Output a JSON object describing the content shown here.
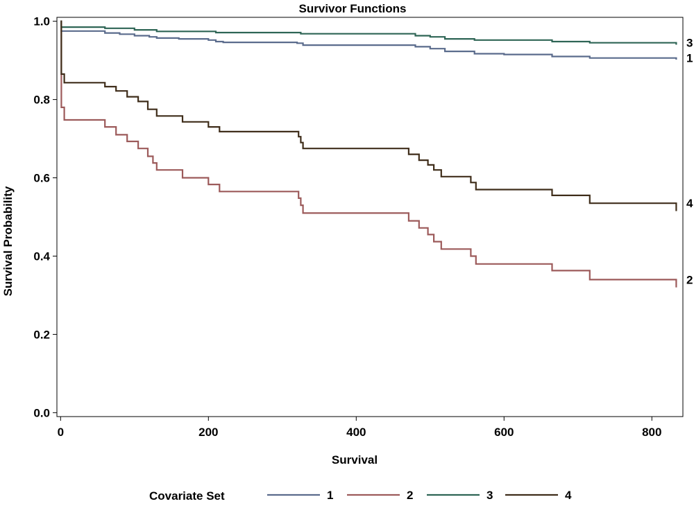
{
  "chart_data": {
    "type": "line",
    "title": "Survivor Functions",
    "xlabel": "Survival",
    "ylabel": "Survival Probability",
    "xlim": [
      -5,
      842
    ],
    "ylim": [
      -0.01,
      1.01
    ],
    "xticks": [
      0,
      200,
      400,
      600,
      800
    ],
    "yticks": [
      0.0,
      0.2,
      0.4,
      0.6,
      0.8,
      1.0
    ],
    "ytick_labels": [
      "0.0",
      "0.2",
      "0.4",
      "0.6",
      "0.8",
      "1.0"
    ],
    "grid": false,
    "legend": {
      "title": "Covariate Set",
      "placement": "bottom"
    },
    "series": [
      {
        "name": "1",
        "end_label": "1",
        "color": "#5a6b8c",
        "points": [
          [
            0,
            1.0
          ],
          [
            1,
            0.975
          ],
          [
            60,
            0.97
          ],
          [
            80,
            0.967
          ],
          [
            100,
            0.963
          ],
          [
            120,
            0.96
          ],
          [
            130,
            0.957
          ],
          [
            160,
            0.955
          ],
          [
            200,
            0.952
          ],
          [
            210,
            0.948
          ],
          [
            220,
            0.946
          ],
          [
            320,
            0.944
          ],
          [
            328,
            0.939
          ],
          [
            480,
            0.935
          ],
          [
            500,
            0.93
          ],
          [
            520,
            0.923
          ],
          [
            560,
            0.917
          ],
          [
            600,
            0.915
          ],
          [
            665,
            0.91
          ],
          [
            716,
            0.906
          ],
          [
            833,
            0.906
          ],
          [
            833,
            0.902
          ]
        ]
      },
      {
        "name": "2",
        "end_label": "2",
        "color": "#9c5a5a",
        "points": [
          [
            0,
            1.0
          ],
          [
            1,
            0.78
          ],
          [
            5,
            0.748
          ],
          [
            60,
            0.73
          ],
          [
            75,
            0.71
          ],
          [
            90,
            0.693
          ],
          [
            105,
            0.675
          ],
          [
            118,
            0.655
          ],
          [
            125,
            0.638
          ],
          [
            130,
            0.62
          ],
          [
            165,
            0.6
          ],
          [
            200,
            0.583
          ],
          [
            215,
            0.565
          ],
          [
            322,
            0.548
          ],
          [
            325,
            0.53
          ],
          [
            328,
            0.51
          ],
          [
            471,
            0.49
          ],
          [
            485,
            0.472
          ],
          [
            497,
            0.455
          ],
          [
            505,
            0.437
          ],
          [
            515,
            0.418
          ],
          [
            555,
            0.4
          ],
          [
            562,
            0.38
          ],
          [
            665,
            0.363
          ],
          [
            716,
            0.34
          ],
          [
            833,
            0.34
          ],
          [
            833,
            0.32
          ]
        ]
      },
      {
        "name": "3",
        "end_label": "3",
        "color": "#2e6555",
        "points": [
          [
            0,
            1.0
          ],
          [
            1,
            0.985
          ],
          [
            60,
            0.982
          ],
          [
            100,
            0.978
          ],
          [
            130,
            0.974
          ],
          [
            210,
            0.971
          ],
          [
            325,
            0.968
          ],
          [
            480,
            0.963
          ],
          [
            500,
            0.96
          ],
          [
            520,
            0.955
          ],
          [
            560,
            0.952
          ],
          [
            665,
            0.948
          ],
          [
            716,
            0.945
          ],
          [
            833,
            0.945
          ],
          [
            833,
            0.94
          ]
        ]
      },
      {
        "name": "4",
        "end_label": "4",
        "color": "#3f2d1a",
        "points": [
          [
            0,
            1.0
          ],
          [
            1,
            0.865
          ],
          [
            5,
            0.843
          ],
          [
            60,
            0.833
          ],
          [
            75,
            0.822
          ],
          [
            90,
            0.807
          ],
          [
            105,
            0.795
          ],
          [
            118,
            0.775
          ],
          [
            130,
            0.758
          ],
          [
            165,
            0.743
          ],
          [
            200,
            0.73
          ],
          [
            215,
            0.718
          ],
          [
            322,
            0.705
          ],
          [
            325,
            0.69
          ],
          [
            328,
            0.675
          ],
          [
            471,
            0.66
          ],
          [
            485,
            0.645
          ],
          [
            497,
            0.633
          ],
          [
            505,
            0.62
          ],
          [
            515,
            0.603
          ],
          [
            555,
            0.588
          ],
          [
            562,
            0.57
          ],
          [
            665,
            0.555
          ],
          [
            716,
            0.535
          ],
          [
            833,
            0.535
          ],
          [
            833,
            0.515
          ]
        ]
      }
    ]
  }
}
